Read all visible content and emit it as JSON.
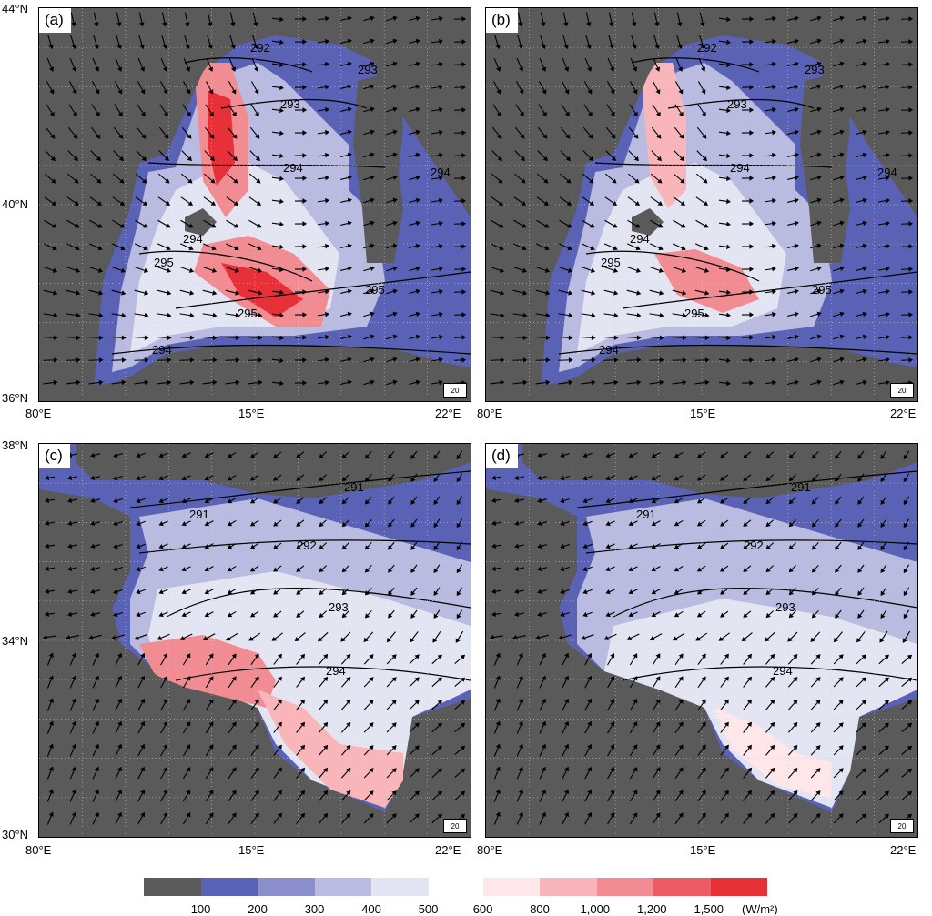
{
  "chart_data": [
    {
      "type": "heatmap",
      "panel_label": "(a)",
      "lat_ticks": [
        "44°N",
        "40°N",
        "36°N"
      ],
      "lon_ticks": [
        "80°E",
        "15°E",
        "22°E"
      ],
      "contour_labels": [
        "292",
        "293",
        "293",
        "294",
        "294",
        "294",
        "295",
        "295",
        "295",
        "294"
      ],
      "reference_vector": "20"
    },
    {
      "type": "heatmap",
      "panel_label": "(b)",
      "lon_ticks": [
        "80°E",
        "15°E",
        "22°E"
      ],
      "contour_labels": [
        "292",
        "293",
        "293",
        "294",
        "294",
        "294",
        "295",
        "295",
        "295",
        "294"
      ],
      "reference_vector": "20"
    },
    {
      "type": "heatmap",
      "panel_label": "(c)",
      "lat_ticks": [
        "38°N",
        "34°N",
        "30°N"
      ],
      "lon_ticks": [
        "80°E",
        "15°E",
        "22°E"
      ],
      "contour_labels": [
        "291",
        "291",
        "292",
        "293",
        "294"
      ],
      "reference_vector": "20"
    },
    {
      "type": "heatmap",
      "panel_label": "(d)",
      "lon_ticks": [
        "80°E",
        "15°E",
        "22°E"
      ],
      "contour_labels": [
        "291",
        "291",
        "292",
        "293",
        "294"
      ],
      "reference_vector": "20"
    }
  ],
  "colorbar": {
    "labels": [
      "100",
      "200",
      "300",
      "400",
      "500",
      "600",
      "800",
      "1,000",
      "1,200",
      "1,500"
    ],
    "unit": "(W/m²)",
    "colors": [
      "#5a5a5a",
      "#5a62b6",
      "#8a8fcb",
      "#b9bbe0",
      "#e4e5f2",
      "#ffe6e8",
      "#f8b6bb",
      "#f28c93",
      "#ed5c65",
      "#e83038"
    ]
  },
  "colors": {
    "land": "#5a5a5a",
    "low": "#5a62b6",
    "mid": "#b9bbe0",
    "high": "#e83038"
  }
}
